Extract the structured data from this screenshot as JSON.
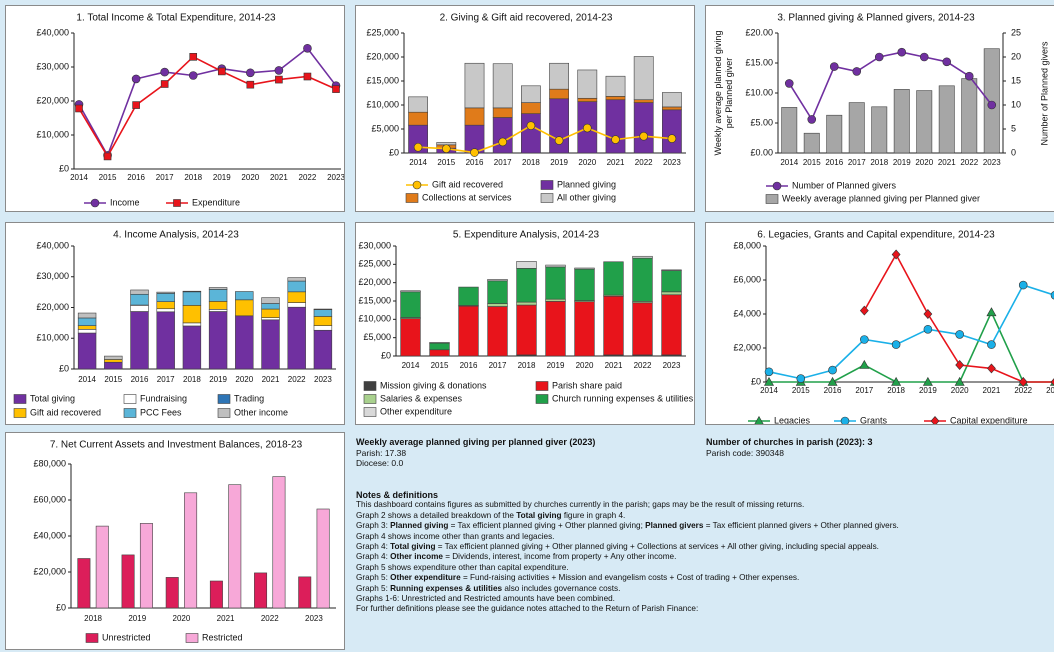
{
  "chart_data": [
    {
      "type": "line",
      "title": "1. Total Income & Total Expenditure, 2014-23",
      "categories": [
        "2014",
        "2015",
        "2016",
        "2017",
        "2018",
        "2019",
        "2020",
        "2021",
        "2022",
        "2023"
      ],
      "series": [
        {
          "name": "Income",
          "color": "#7030a0",
          "marker": "circle",
          "values": [
            19000,
            4000,
            26500,
            28500,
            27500,
            29500,
            28300,
            29000,
            35500,
            24500
          ]
        },
        {
          "name": "Expenditure",
          "color": "#e8141b",
          "marker": "square",
          "values": [
            17800,
            3700,
            18800,
            25000,
            33000,
            28700,
            24800,
            26300,
            27200,
            23500
          ]
        }
      ],
      "ylim": [
        0,
        40000
      ],
      "yticks": [
        {
          "value": 0,
          "label": "£0"
        },
        {
          "value": 10000,
          "label": "£10,000"
        },
        {
          "value": 20000,
          "label": "£20,000"
        },
        {
          "value": 30000,
          "label": "£30,000"
        },
        {
          "value": 40000,
          "label": "£40,000"
        }
      ]
    },
    {
      "type": "combo",
      "stacked": true,
      "title": "2. Giving & Gift aid recovered, 2014-23",
      "categories": [
        "2014",
        "2015",
        "2016",
        "2017",
        "2018",
        "2019",
        "2020",
        "2021",
        "2022",
        "2023"
      ],
      "series": [
        {
          "name": "Gift aid recovered",
          "kind": "line",
          "color": "#ffc000",
          "marker": "circle",
          "values": [
            1200,
            900,
            100,
            2300,
            5700,
            2600,
            5200,
            2800,
            3500,
            3000
          ]
        },
        {
          "name": "Planned giving",
          "kind": "bar",
          "color": "#7030a0",
          "values": [
            5800,
            1000,
            5800,
            7400,
            8200,
            11300,
            10700,
            11100,
            10500,
            9000
          ]
        },
        {
          "name": "Collections at services",
          "kind": "bar",
          "color": "#e07b1a",
          "values": [
            2700,
            700,
            3600,
            2000,
            2300,
            2000,
            700,
            700,
            600,
            600
          ]
        },
        {
          "name": "All other giving",
          "kind": "bar",
          "color": "#c8c8c8",
          "values": [
            3200,
            500,
            9300,
            9200,
            3500,
            5400,
            5900,
            4200,
            9000,
            3000
          ]
        }
      ],
      "ylim": [
        0,
        25000
      ],
      "yticks": [
        {
          "value": 0,
          "label": "£0"
        },
        {
          "value": 5000,
          "label": "£5,000"
        },
        {
          "value": 10000,
          "label": "£10,000"
        },
        {
          "value": 15000,
          "label": "£15,000"
        },
        {
          "value": 20000,
          "label": "£20,000"
        },
        {
          "value": 25000,
          "label": "£25,000"
        }
      ]
    },
    {
      "type": "combo",
      "title": "3. Planned giving & Planned givers, 2014-23",
      "ylabel": "Weekly average planned giving per Planned giver",
      "y2label": "Number of Planned givers",
      "categories": [
        "2014",
        "2015",
        "2016",
        "2017",
        "2018",
        "2019",
        "2020",
        "2021",
        "2022",
        "2023"
      ],
      "series": [
        {
          "name": "Number of Planned givers",
          "kind": "line",
          "axis": "y2",
          "color": "#7030a0",
          "marker": "circle",
          "values": [
            14.5,
            7,
            18,
            17,
            20,
            21,
            20,
            19,
            16,
            10
          ]
        },
        {
          "name": "Weekly average planned giving per Planned giver",
          "kind": "bar",
          "color": "#a6a6a6",
          "values": [
            7.6,
            3.3,
            6.3,
            8.4,
            7.7,
            10.6,
            10.4,
            11.2,
            12.4,
            17.38
          ]
        }
      ],
      "ylim": [
        0,
        20
      ],
      "yticks": [
        {
          "value": 0,
          "label": "£0.00"
        },
        {
          "value": 5,
          "label": "£5.00"
        },
        {
          "value": 10,
          "label": "£10.00"
        },
        {
          "value": 15,
          "label": "£15.00"
        },
        {
          "value": 20,
          "label": "£20.00"
        }
      ],
      "y2lim": [
        0,
        25
      ],
      "y2ticks": [
        0,
        5,
        10,
        15,
        20,
        25
      ]
    },
    {
      "type": "bar",
      "stacked": true,
      "title": "4. Income Analysis, 2014-23",
      "categories": [
        "2014",
        "2015",
        "2016",
        "2017",
        "2018",
        "2019",
        "2020",
        "2021",
        "2022",
        "2023"
      ],
      "series": [
        {
          "name": "Total giving",
          "color": "#7030a0",
          "values": [
            11700,
            2200,
            18700,
            18600,
            14000,
            18700,
            17300,
            16000,
            20100,
            12600
          ]
        },
        {
          "name": "Fundraising",
          "color": "#ffffff",
          "values": [
            1200,
            0,
            2000,
            1000,
            1000,
            700,
            0,
            700,
            1500,
            1500
          ]
        },
        {
          "name": "Trading",
          "color": "#2e75b6",
          "values": [
            0,
            0,
            0,
            0,
            0,
            0,
            0,
            0,
            0,
            0
          ]
        },
        {
          "name": "Gift aid recovered",
          "color": "#ffc000",
          "values": [
            1200,
            900,
            100,
            2300,
            5700,
            2600,
            5200,
            2800,
            3500,
            3000
          ]
        },
        {
          "name": "PCC Fees",
          "color": "#5bb5d8",
          "values": [
            2500,
            0,
            3500,
            2700,
            4400,
            3900,
            2700,
            1800,
            3500,
            2200
          ]
        },
        {
          "name": "Other income",
          "color": "#bfbfbf",
          "values": [
            1600,
            1100,
            1400,
            400,
            200,
            600,
            0,
            1900,
            1100,
            200
          ]
        }
      ],
      "ylim": [
        0,
        40000
      ],
      "yticks": [
        {
          "value": 0,
          "label": "£0"
        },
        {
          "value": 10000,
          "label": "£10,000"
        },
        {
          "value": 20000,
          "label": "£20,000"
        },
        {
          "value": 30000,
          "label": "£30,000"
        },
        {
          "value": 40000,
          "label": "£40,000"
        }
      ]
    },
    {
      "type": "bar",
      "stacked": true,
      "title": "5. Expenditure Analysis, 2014-23",
      "categories": [
        "2014",
        "2015",
        "2016",
        "2017",
        "2018",
        "2019",
        "2020",
        "2021",
        "2022",
        "2023"
      ],
      "series": [
        {
          "name": "Mission giving & donations",
          "color": "#404040",
          "values": [
            0,
            0,
            0,
            0,
            300,
            0,
            0,
            300,
            300,
            300
          ]
        },
        {
          "name": "Parish share paid",
          "color": "#e8141b",
          "values": [
            10200,
            1700,
            13600,
            13500,
            13600,
            14900,
            14800,
            16000,
            14200,
            16400
          ]
        },
        {
          "name": "Salaries & expenses",
          "color": "#a9d18e",
          "values": [
            300,
            0,
            200,
            800,
            800,
            600,
            300,
            300,
            400,
            800
          ]
        },
        {
          "name": "Church running expenses & utilities",
          "color": "#21a04a",
          "values": [
            7000,
            1800,
            5000,
            6200,
            9200,
            8800,
            8600,
            9100,
            11800,
            5800
          ]
        },
        {
          "name": "Other expenditure",
          "color": "#d9d9d9",
          "values": [
            300,
            200,
            0,
            400,
            1900,
            500,
            300,
            0,
            500,
            200
          ]
        }
      ],
      "ylim": [
        0,
        30000
      ],
      "yticks": [
        {
          "value": 0,
          "label": "£0"
        },
        {
          "value": 5000,
          "label": "£5,000"
        },
        {
          "value": 10000,
          "label": "£10,000"
        },
        {
          "value": 15000,
          "label": "£15,000"
        },
        {
          "value": 20000,
          "label": "£20,000"
        },
        {
          "value": 25000,
          "label": "£25,000"
        },
        {
          "value": 30000,
          "label": "£30,000"
        }
      ]
    },
    {
      "type": "line",
      "title": "6. Legacies, Grants and Capital expenditure, 2014-23",
      "categories": [
        "2014",
        "2015",
        "2016",
        "2017",
        "2018",
        "2019",
        "2020",
        "2021",
        "2022",
        "2023"
      ],
      "series": [
        {
          "name": "Legacies",
          "color": "#21a04a",
          "marker": "triangle",
          "values": [
            0,
            0,
            0,
            1000,
            0,
            0,
            0,
            4100,
            0,
            0
          ]
        },
        {
          "name": "Grants",
          "color": "#1ab0e8",
          "marker": "circle",
          "values": [
            600,
            200,
            700,
            2500,
            2200,
            3100,
            2800,
            2200,
            5700,
            5100
          ]
        },
        {
          "name": "Capital expenditure",
          "color": "#e8141b",
          "marker": "diamond",
          "values": [
            null,
            null,
            null,
            4200,
            7500,
            4000,
            1000,
            800,
            0,
            0
          ]
        }
      ],
      "ylim": [
        0,
        8000
      ],
      "yticks": [
        {
          "value": 0,
          "label": "£0"
        },
        {
          "value": 2000,
          "label": "£2,000"
        },
        {
          "value": 4000,
          "label": "£4,000"
        },
        {
          "value": 6000,
          "label": "£6,000"
        },
        {
          "value": 8000,
          "label": "£8,000"
        }
      ]
    },
    {
      "type": "bar",
      "title": "7. Net Current Assets and Investment Balances, 2018-23",
      "categories": [
        "2018",
        "2019",
        "2020",
        "2021",
        "2022",
        "2023"
      ],
      "series": [
        {
          "name": "Unrestricted",
          "color": "#dc1e5a",
          "values": [
            27500,
            29500,
            17000,
            15000,
            19500,
            17300
          ]
        },
        {
          "name": "Restricted",
          "color": "#f7a8d8",
          "values": [
            45500,
            47000,
            64000,
            68500,
            73000,
            55000
          ]
        }
      ],
      "ylim": [
        0,
        80000
      ],
      "yticks": [
        {
          "value": 0,
          "label": "£0"
        },
        {
          "value": 20000,
          "label": "£20,000"
        },
        {
          "value": 40000,
          "label": "£40,000"
        },
        {
          "value": 60000,
          "label": "£60,000"
        },
        {
          "value": 80000,
          "label": "£80,000"
        }
      ]
    }
  ],
  "info": [
    {
      "title": "Weekly average planned giving per planned giver (2023)",
      "lines": [
        "Parish: 17.38",
        "Diocese: 0.0"
      ]
    },
    {
      "title": "Number of churches in parish (2023): 3",
      "lines": [
        "Parish code: 390348"
      ]
    }
  ],
  "notes": {
    "title": "Notes & definitions",
    "lines": [
      [
        "This dashboard contains figures as submitted by churches currently in the parish; gaps may be the result of missing returns."
      ],
      [
        "Graph 2 shows a detailed breakdown of the ",
        {
          "bold": "Total giving"
        },
        " figure in graph 4."
      ],
      [
        "Graph 3: ",
        {
          "bold": "Planned giving"
        },
        " = Tax efficient planned giving + Other planned giving; ",
        {
          "bold": "Planned givers"
        },
        " = Tax efficient planned givers + Other planned givers."
      ],
      [
        "Graph 4 shows income other than grants and legacies."
      ],
      [
        "Graph 4: ",
        {
          "bold": "Total giving"
        },
        " = Tax efficient planned giving + Other planned giving + Collections at services + All other giving, including special appeals."
      ],
      [
        "Graph 4: ",
        {
          "bold": "Other income"
        },
        " = Dividends, interest, income from property + Any other income."
      ],
      [
        "Graph 5 shows expenditure other than capital expenditure."
      ],
      [
        "Graph 5: ",
        {
          "bold": "Other expenditure"
        },
        " = Fund-raising activities + Mission and evangelism costs + Cost of trading + Other expenses."
      ],
      [
        "Graph 5: ",
        {
          "bold": "Running expenses & utilities"
        },
        " also includes governance costs."
      ],
      [
        "Graphs 1-6: Unrestricted and Restricted amounts have been combined."
      ],
      [
        "For further definitions please see the guidance notes attached to the Return of Parish Finance:"
      ]
    ]
  }
}
